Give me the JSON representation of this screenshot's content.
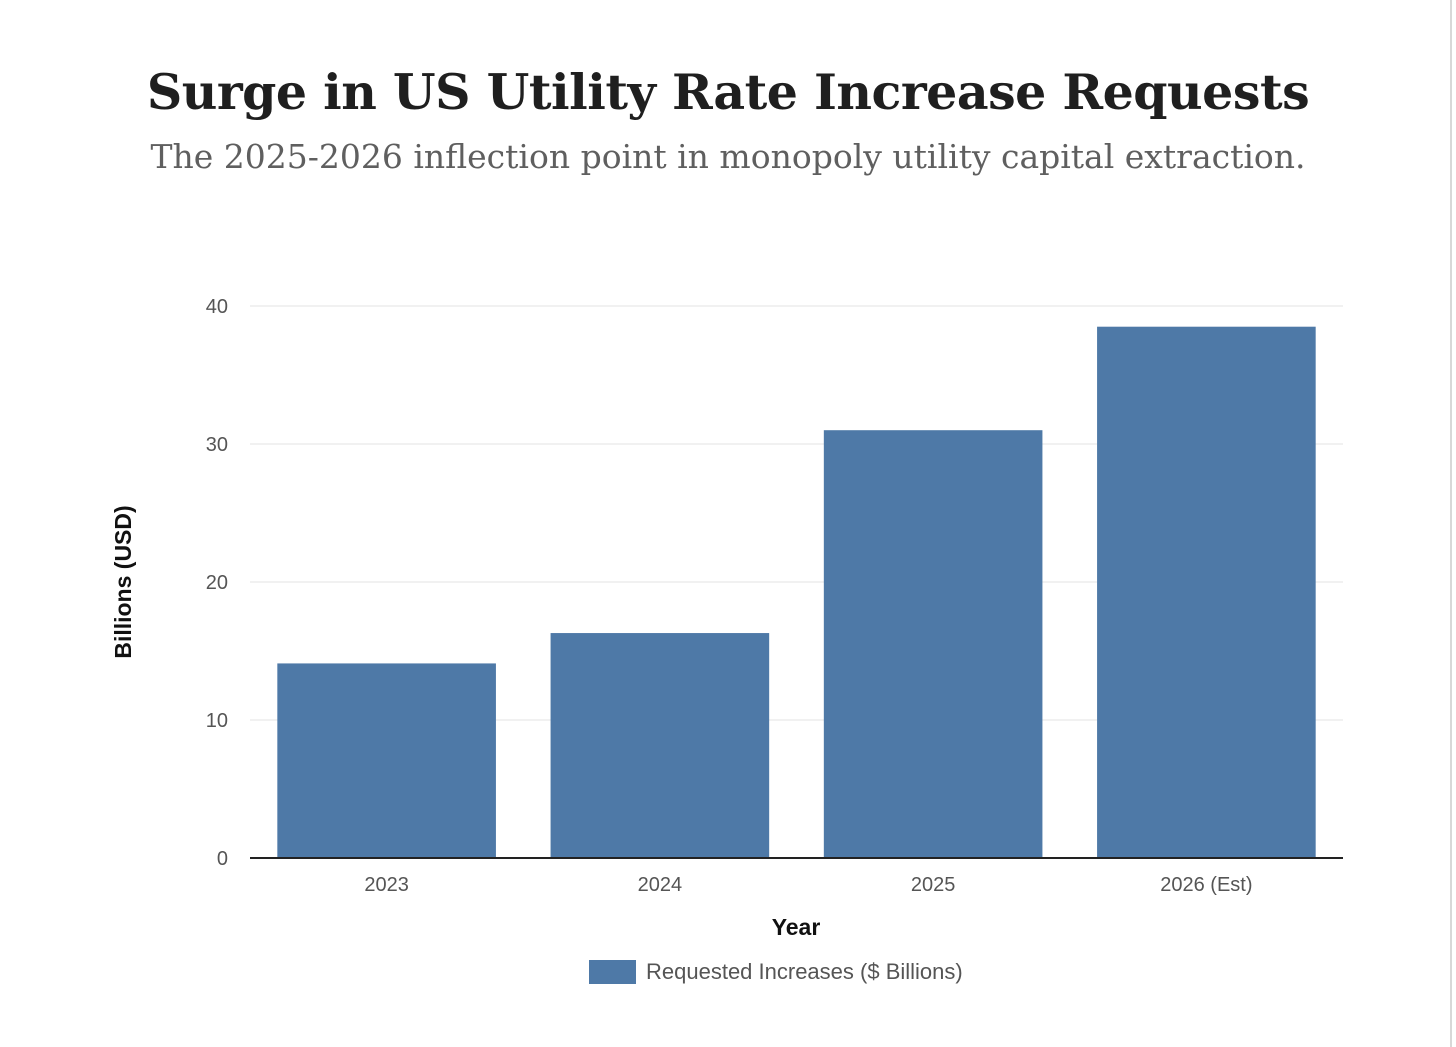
{
  "chart_data": {
    "type": "bar",
    "title": "Surge in US Utility Rate Increase Requests",
    "subtitle": "The 2025-2026 inflection point in monopoly utility capital extraction.",
    "categories": [
      "2023",
      "2024",
      "2025",
      "2026 (Est)"
    ],
    "series": [
      {
        "name": "Requested Increases ($ Billions)",
        "values": [
          14.1,
          16.3,
          31.0,
          38.5
        ],
        "color": "#4e79a7"
      }
    ],
    "xlabel": "Year",
    "ylabel": "Billions (USD)",
    "ylim": [
      0,
      40
    ],
    "yticks": [
      0,
      10,
      20,
      30,
      40
    ],
    "grid": true,
    "legend_position": "bottom-center"
  }
}
